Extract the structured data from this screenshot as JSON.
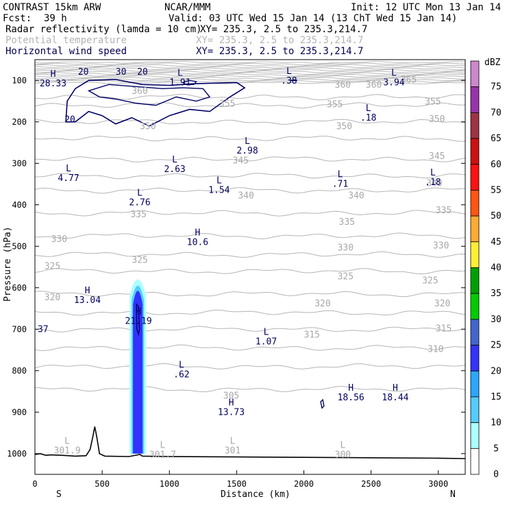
{
  "header": {
    "model": "CONTRAST 15km ARW",
    "org": "NCAR/MMM",
    "init": "Init: 12 UTC Mon 13 Jan 14",
    "fcst_label": "Fcst:",
    "fcst_value": "39 h",
    "valid": "Valid: 03 UTC Wed 15 Jan 14 (13 ChT Wed 15 Jan 14)",
    "fields": [
      {
        "name": "Radar reflectivity (lamda = 10 cm)",
        "xy": "XY= 235.3,  2.5 to 235.3,214.7"
      },
      {
        "name": "Potential temperature",
        "xy": "XY= 235.3,  2.5 to 235.3,214.7"
      },
      {
        "name": "Horizontal wind speed",
        "xy": "XY= 235.3,  2.5 to 235.3,214.7"
      }
    ]
  },
  "chart_data": {
    "type": "contour cross-section",
    "xlabel": "Distance (km)",
    "ylabel": "Pressure (hPa)",
    "xlim": [
      0,
      3200
    ],
    "ylim": [
      1050,
      50
    ],
    "x_ticks": [
      0,
      500,
      1000,
      1500,
      2000,
      2500,
      3000
    ],
    "y_ticks": [
      100,
      200,
      300,
      400,
      500,
      600,
      700,
      800,
      900,
      1000
    ],
    "x_end_labels": {
      "left": "S",
      "right": "N"
    },
    "colorbar": {
      "unit": "dBZ",
      "levels": [
        0,
        5,
        10,
        15,
        20,
        25,
        30,
        35,
        40,
        45,
        50,
        55,
        60,
        65,
        70,
        75
      ],
      "colors": [
        "#ffffff",
        "#aaffff",
        "#55ccff",
        "#2aa8ff",
        "#3333ff",
        "#4466cc",
        "#00cc00",
        "#00a000",
        "#ffee33",
        "#ffaa33",
        "#ff5511",
        "#ff1111",
        "#cc1111",
        "#a03344",
        "#9933aa",
        "#cc88cc"
      ]
    },
    "isentrope_labels": [
      {
        "text": "365",
        "x": 2780,
        "y": 105
      },
      {
        "text": "360",
        "x": 2290,
        "y": 118
      },
      {
        "text": "360",
        "x": 2520,
        "y": 118
      },
      {
        "text": "360",
        "x": 780,
        "y": 133
      },
      {
        "text": "355",
        "x": 2230,
        "y": 165
      },
      {
        "text": "355",
        "x": 2960,
        "y": 158
      },
      {
        "text": "355",
        "x": 1430,
        "y": 163
      },
      {
        "text": "350",
        "x": 2990,
        "y": 200
      },
      {
        "text": "350",
        "x": 2300,
        "y": 218
      },
      {
        "text": "350",
        "x": 840,
        "y": 218
      },
      {
        "text": "345",
        "x": 1530,
        "y": 300
      },
      {
        "text": "345",
        "x": 2990,
        "y": 290
      },
      {
        "text": "340",
        "x": 2970,
        "y": 355
      },
      {
        "text": "340",
        "x": 2390,
        "y": 385
      },
      {
        "text": "340",
        "x": 1570,
        "y": 385
      },
      {
        "text": "335",
        "x": 2320,
        "y": 448
      },
      {
        "text": "335",
        "x": 3040,
        "y": 420
      },
      {
        "text": "335",
        "x": 770,
        "y": 430
      },
      {
        "text": "330",
        "x": 180,
        "y": 490
      },
      {
        "text": "330",
        "x": 2310,
        "y": 510
      },
      {
        "text": "330",
        "x": 3020,
        "y": 505
      },
      {
        "text": "325",
        "x": 130,
        "y": 555
      },
      {
        "text": "325",
        "x": 780,
        "y": 540
      },
      {
        "text": "325",
        "x": 2310,
        "y": 580
      },
      {
        "text": "325",
        "x": 2940,
        "y": 590
      },
      {
        "text": "320",
        "x": 130,
        "y": 630
      },
      {
        "text": "320",
        "x": 2140,
        "y": 645
      },
      {
        "text": "320",
        "x": 3030,
        "y": 645
      },
      {
        "text": "315",
        "x": 2060,
        "y": 720
      },
      {
        "text": "315",
        "x": 3040,
        "y": 705
      },
      {
        "text": "310",
        "x": 2980,
        "y": 755
      },
      {
        "text": "305",
        "x": 1460,
        "y": 867
      }
    ],
    "extrema": [
      {
        "kind": "H",
        "value": "28.33",
        "x": 135,
        "y": 95,
        "color": "blue"
      },
      {
        "kind": "L",
        "value": "1.91",
        "x": 1080,
        "y": 92,
        "color": "blue"
      },
      {
        "kind": "L",
        "value": ".38",
        "x": 1890,
        "y": 88,
        "color": "blue"
      },
      {
        "kind": "L",
        "value": "3.94",
        "x": 2670,
        "y": 92,
        "color": "blue"
      },
      {
        "kind": "L",
        "value": ".18",
        "x": 2480,
        "y": 177,
        "color": "blue"
      },
      {
        "kind": "L",
        "value": "2.98",
        "x": 1580,
        "y": 257,
        "color": "blue"
      },
      {
        "kind": "L",
        "value": "2.63",
        "x": 1040,
        "y": 301,
        "color": "blue"
      },
      {
        "kind": "L",
        "value": "4.77",
        "x": 250,
        "y": 323,
        "color": "blue"
      },
      {
        "kind": "L",
        "value": ".71",
        "x": 2270,
        "y": 337,
        "color": "blue"
      },
      {
        "kind": "L",
        "value": ".18",
        "x": 2960,
        "y": 333,
        "color": "blue"
      },
      {
        "kind": "L",
        "value": "1.54",
        "x": 1370,
        "y": 352,
        "color": "blue"
      },
      {
        "kind": "L",
        "value": "2.76",
        "x": 780,
        "y": 381,
        "color": "blue"
      },
      {
        "kind": "H",
        "value": "10.6",
        "x": 1210,
        "y": 477,
        "color": "blue"
      },
      {
        "kind": "H",
        "value": "13.04",
        "x": 390,
        "y": 617,
        "color": "blue"
      },
      {
        "kind": "H",
        "value": "21.19",
        "x": 770,
        "y": 667,
        "color": "blue"
      },
      {
        "kind": "L",
        "value": "1.07",
        "x": 1720,
        "y": 717,
        "color": "blue"
      },
      {
        "kind": "L",
        "value": ".62",
        "x": 1090,
        "y": 796,
        "color": "blue"
      },
      {
        "kind": "H",
        "value": "18.56",
        "x": 2350,
        "y": 852,
        "color": "blue"
      },
      {
        "kind": "H",
        "value": "18.44",
        "x": 2680,
        "y": 852,
        "color": "blue"
      },
      {
        "kind": "H",
        "value": "13.73",
        "x": 1460,
        "y": 887,
        "color": "blue"
      },
      {
        "kind": "L",
        "value": "301.9",
        "x": 240,
        "y": 980,
        "color": "gray"
      },
      {
        "kind": "L",
        "value": "301.7",
        "x": 950,
        "y": 990,
        "color": "gray"
      },
      {
        "kind": "L",
        "value": "301",
        "x": 1470,
        "y": 980,
        "color": "gray"
      },
      {
        "kind": "L",
        "value": "300",
        "x": 2290,
        "y": 990,
        "color": "gray"
      }
    ],
    "wind_contour_labels": [
      {
        "text": "20",
        "x": 260,
        "y": 195
      },
      {
        "text": "20",
        "x": 360,
        "y": 80
      },
      {
        "text": "30",
        "x": 640,
        "y": 80
      },
      {
        "text": "20",
        "x": 800,
        "y": 80
      },
      {
        "text": "37",
        "x": 60,
        "y": 700
      }
    ]
  }
}
